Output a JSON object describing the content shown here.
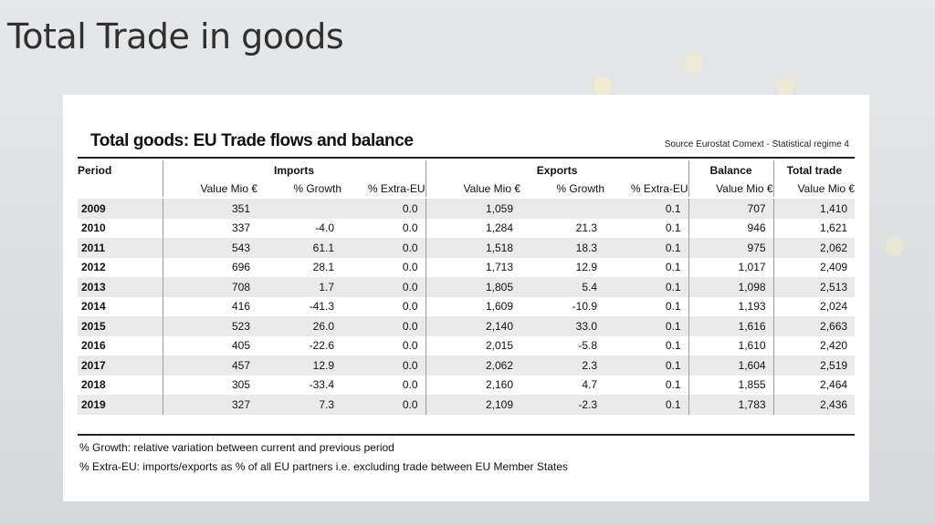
{
  "slide": {
    "title": "Total Trade in goods"
  },
  "table": {
    "title": "Total goods: EU Trade flows and balance",
    "source": "Source Eurostat Comext  - Statistical regime 4",
    "group_headers": {
      "period": "Period",
      "imports": "Imports",
      "exports": "Exports",
      "balance": "Balance",
      "total_trade": "Total trade"
    },
    "sub_headers": {
      "imp_value": "Value Mio €",
      "imp_growth": "% Growth",
      "imp_extra": "% Extra-EU",
      "exp_value": "Value Mio €",
      "exp_growth": "% Growth",
      "exp_extra": "% Extra-EU",
      "bal_value": "Value Mio €",
      "tot_value": "Value Mio €"
    },
    "rows": [
      {
        "year": "2009",
        "imp_value": "351",
        "imp_growth": "",
        "imp_extra": "0.0",
        "exp_value": "1,059",
        "exp_growth": "",
        "exp_extra": "0.1",
        "balance": "707",
        "total": "1,410"
      },
      {
        "year": "2010",
        "imp_value": "337",
        "imp_growth": "-4.0",
        "imp_extra": "0.0",
        "exp_value": "1,284",
        "exp_growth": "21.3",
        "exp_extra": "0.1",
        "balance": "946",
        "total": "1,621"
      },
      {
        "year": "2011",
        "imp_value": "543",
        "imp_growth": "61.1",
        "imp_extra": "0.0",
        "exp_value": "1,518",
        "exp_growth": "18.3",
        "exp_extra": "0.1",
        "balance": "975",
        "total": "2,062"
      },
      {
        "year": "2012",
        "imp_value": "696",
        "imp_growth": "28.1",
        "imp_extra": "0.0",
        "exp_value": "1,713",
        "exp_growth": "12.9",
        "exp_extra": "0.1",
        "balance": "1,017",
        "total": "2,409"
      },
      {
        "year": "2013",
        "imp_value": "708",
        "imp_growth": "1.7",
        "imp_extra": "0.0",
        "exp_value": "1,805",
        "exp_growth": "5.4",
        "exp_extra": "0.1",
        "balance": "1,098",
        "total": "2,513"
      },
      {
        "year": "2014",
        "imp_value": "416",
        "imp_growth": "-41.3",
        "imp_extra": "0.0",
        "exp_value": "1,609",
        "exp_growth": "-10.9",
        "exp_extra": "0.1",
        "balance": "1,193",
        "total": "2,024"
      },
      {
        "year": "2015",
        "imp_value": "523",
        "imp_growth": "26.0",
        "imp_extra": "0.0",
        "exp_value": "2,140",
        "exp_growth": "33.0",
        "exp_extra": "0.1",
        "balance": "1,616",
        "total": "2,663"
      },
      {
        "year": "2016",
        "imp_value": "405",
        "imp_growth": "-22.6",
        "imp_extra": "0.0",
        "exp_value": "2,015",
        "exp_growth": "-5.8",
        "exp_extra": "0.1",
        "balance": "1,610",
        "total": "2,420"
      },
      {
        "year": "2017",
        "imp_value": "457",
        "imp_growth": "12.9",
        "imp_extra": "0.0",
        "exp_value": "2,062",
        "exp_growth": "2.3",
        "exp_extra": "0.1",
        "balance": "1,604",
        "total": "2,519"
      },
      {
        "year": "2018",
        "imp_value": "305",
        "imp_growth": "-33.4",
        "imp_extra": "0.0",
        "exp_value": "2,160",
        "exp_growth": "4.7",
        "exp_extra": "0.1",
        "balance": "1,855",
        "total": "2,464"
      },
      {
        "year": "2019",
        "imp_value": "327",
        "imp_growth": "7.3",
        "imp_extra": "0.0",
        "exp_value": "2,109",
        "exp_growth": "-2.3",
        "exp_extra": "0.1",
        "balance": "1,783",
        "total": "2,436"
      }
    ],
    "notes": [
      "% Growth: relative variation between current and previous period",
      "% Extra-EU: imports/exports as % of all EU partners i.e. excluding trade between EU Member States"
    ]
  }
}
